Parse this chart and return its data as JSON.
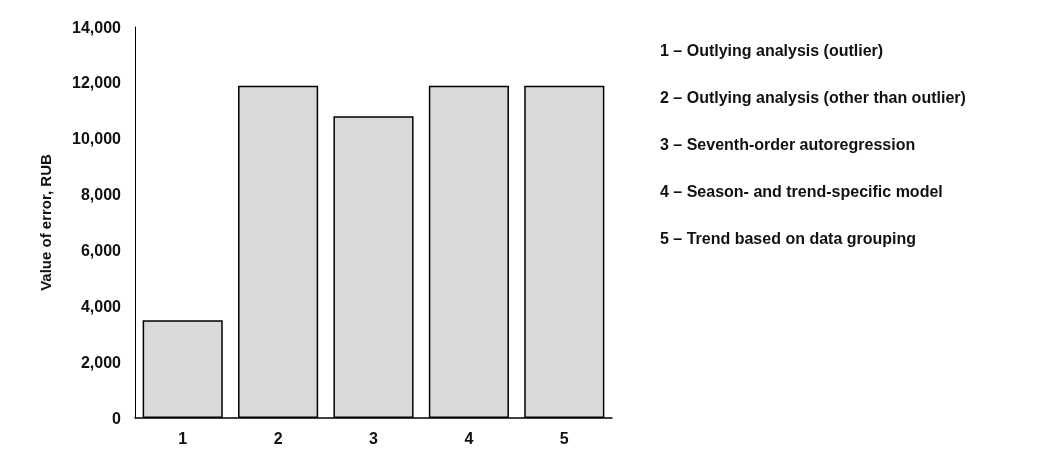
{
  "chart_data": {
    "type": "bar",
    "ylabel": "Value of error, RUB",
    "categories": [
      "1",
      "2",
      "3",
      "4",
      "5"
    ],
    "values": [
      3500,
      11900,
      10800,
      11900,
      11900
    ],
    "color": "#d9d9d9",
    "ylim": [
      0,
      14000
    ],
    "yticks": [
      {
        "value": 0,
        "label": "0"
      },
      {
        "value": 2000,
        "label": "2,000"
      },
      {
        "value": 4000,
        "label": "4,000"
      },
      {
        "value": 6000,
        "label": "6,000"
      },
      {
        "value": 8000,
        "label": "8,000"
      },
      {
        "value": 10000,
        "label": "10,000"
      },
      {
        "value": 12000,
        "label": "12,000"
      },
      {
        "value": 14000,
        "label": "14,000"
      }
    ],
    "grid": false,
    "annotations": [
      "1 – Outlying analysis (outlier)",
      "2 – Outlying analysis (other than outlier)",
      "3 – Seventh-order autoregression",
      "4 – Season- and trend-specific model",
      "5 – Trend based on data grouping"
    ]
  }
}
